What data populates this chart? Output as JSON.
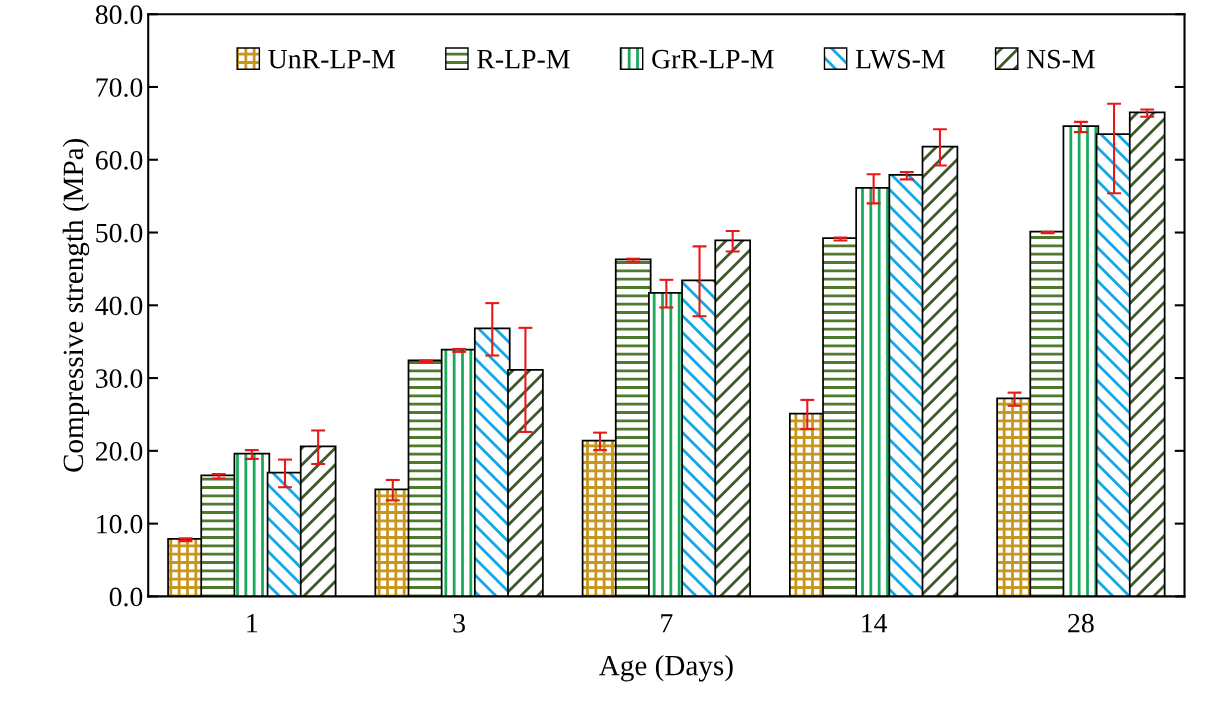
{
  "chart_data": {
    "type": "bar",
    "xlabel": "Age (Days)",
    "ylabel": "Compressive strength (MPa)",
    "categories": [
      "1",
      "3",
      "7",
      "14",
      "28"
    ],
    "series": [
      {
        "name": "UnR-LP-M",
        "color": "#c8961e",
        "values": [
          7.8,
          14.6,
          21.3,
          25.0,
          27.1
        ],
        "errors": [
          0.2,
          1.4,
          1.2,
          2.0,
          0.9
        ]
      },
      {
        "name": "R-LP-M",
        "color": "#4e7a2e",
        "values": [
          16.5,
          32.3,
          46.2,
          49.1,
          50.0
        ],
        "errors": [
          0.3,
          0.1,
          0.2,
          0.2,
          0.1
        ]
      },
      {
        "name": "GrR-LP-M",
        "color": "#1aaa5a",
        "values": [
          19.5,
          33.8,
          41.6,
          56.0,
          64.5
        ],
        "errors": [
          0.6,
          0.2,
          1.9,
          2.0,
          0.7
        ]
      },
      {
        "name": "LWS-M",
        "color": "#14a8e8",
        "values": [
          16.9,
          36.7,
          43.3,
          57.8,
          63.4
        ],
        "errors": [
          1.9,
          3.6,
          4.8,
          0.5,
          [
            55.4,
            67.7
          ]
        ]
      },
      {
        "name": "NS-M",
        "color": "#3f5a2a",
        "values": [
          20.5,
          31.0,
          48.8,
          61.7,
          66.4
        ],
        "errors": [
          2.3,
          [
            22.6,
            36.9
          ],
          1.4,
          2.5,
          0.5
        ]
      }
    ],
    "ylim": [
      0,
      80
    ],
    "yticks": [
      {
        "value": 0,
        "label": "0.0"
      },
      {
        "value": 10,
        "label": "10.0"
      },
      {
        "value": 20,
        "label": "20.0"
      },
      {
        "value": 30,
        "label": "30.0"
      },
      {
        "value": 40,
        "label": "40.0"
      },
      {
        "value": 50,
        "label": "50.0"
      },
      {
        "value": 60,
        "label": "60.0"
      },
      {
        "value": 70,
        "label": "70.0"
      },
      {
        "value": 80,
        "label": "80.0"
      }
    ],
    "legend": "top",
    "grid": false
  }
}
